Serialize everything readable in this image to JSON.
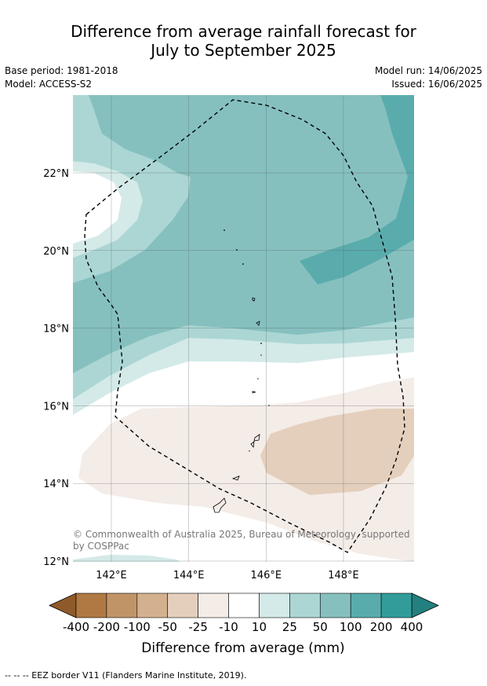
{
  "title_line1": "Difference from average rainfall forecast for",
  "title_line2": "July to September 2025",
  "base_period": "Base period: 1981-2018",
  "model": "Model: ACCESS-S2",
  "model_run": "Model run: 14/06/2025",
  "issued": "Issued: 16/06/2025",
  "copyright": [
    "© Commonwealth of Australia 2025, Bureau of Meteorology, supported",
    "by COSPPac"
  ],
  "footnote": "--  --  -- EEZ border V11 (Flanders Marine Institute, 2019).",
  "map": {
    "lat_labels": [
      {
        "lat": 22,
        "label": "22°N"
      },
      {
        "lat": 20,
        "label": "20°N"
      },
      {
        "lat": 18,
        "label": "18°N"
      },
      {
        "lat": 16,
        "label": "16°N"
      },
      {
        "lat": 14,
        "label": "14°N"
      },
      {
        "lat": 12,
        "label": "12°N"
      }
    ],
    "lon_labels": [
      {
        "lon": 142,
        "label": "142°E"
      },
      {
        "lon": 144,
        "label": "144°E"
      },
      {
        "lon": 146,
        "label": "146°E"
      },
      {
        "lon": 148,
        "label": "148°E"
      }
    ]
  },
  "legend": {
    "title": "Difference from average (mm)",
    "ticks": [
      "-400",
      "-200",
      "-100",
      "-50",
      "-25",
      "-10",
      "10",
      "25",
      "50",
      "100",
      "200",
      "400"
    ],
    "colors": [
      "#b07842",
      "#c19468",
      "#d3b18f",
      "#e4cfbc",
      "#f4ece7",
      "#ffffff",
      "#d4eae8",
      "#abd6d4",
      "#85c0bf",
      "#5aacac",
      "#329c9a"
    ],
    "extend_low_color": "#8e5a2a",
    "extend_high_color": "#23807e"
  }
}
